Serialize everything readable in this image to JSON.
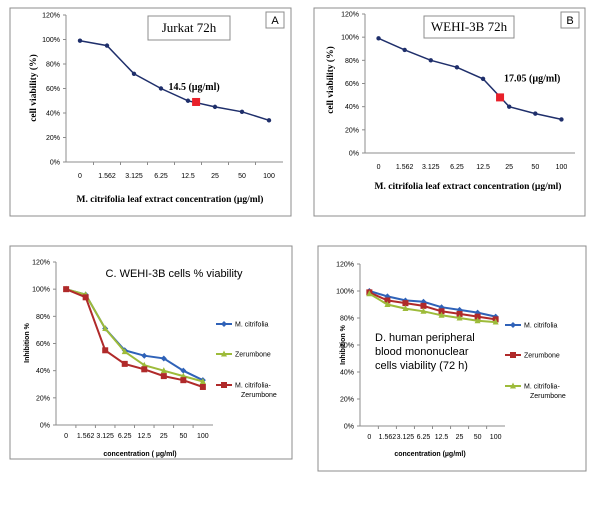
{
  "chart_data": [
    {
      "type": "line",
      "panel_letter": "A",
      "title": "Jurkat 72h",
      "xlabel": "M. citrifolia leaf extract concentration  (µg/ml)",
      "ylabel": "cell viability (%)",
      "categories": [
        "0",
        "1.562",
        "3.125",
        "6.25",
        "12.5",
        "25",
        "50",
        "100"
      ],
      "yticks": [
        "0%",
        "20%",
        "40%",
        "60%",
        "80%",
        "100%",
        "120%"
      ],
      "ylim": [
        0,
        120
      ],
      "series": [
        {
          "values": [
            99,
            95,
            72,
            60,
            50,
            45,
            41,
            34
          ],
          "color": "#1f2f6b"
        }
      ],
      "highlight": {
        "label": "14.5 (µg/ml)",
        "after_index": 4,
        "x_fraction": 0.3,
        "y": 49,
        "color": "#e8202a"
      },
      "grid": false
    },
    {
      "type": "line",
      "panel_letter": "B",
      "title": "WEHI-3B 72h",
      "xlabel": "M. citrifolia leaf extract concentration  (µg/ml)",
      "ylabel": "cell viability (%)",
      "categories": [
        "0",
        "1.562",
        "3.125",
        "6.25",
        "12.5",
        "25",
        "50",
        "100"
      ],
      "yticks": [
        "0%",
        "20%",
        "40%",
        "60%",
        "80%",
        "100%",
        "120%"
      ],
      "ylim": [
        0,
        120
      ],
      "series": [
        {
          "values": [
            99,
            89,
            80,
            74,
            64,
            40,
            34,
            29
          ],
          "color": "#1f2f6b"
        }
      ],
      "highlight": {
        "label": "17.05 (µg/ml)",
        "after_index": 4,
        "x_fraction": 0.65,
        "y": 48,
        "color": "#e8202a"
      },
      "grid": false
    },
    {
      "type": "line",
      "title": "C. WEHI-3B cells % viability",
      "xlabel": "concentration ( µg/ml)",
      "ylabel": "Inhibition %",
      "categories": [
        "0",
        "1.562",
        "3.125",
        "6.25",
        "12.5",
        "25",
        "50",
        "100"
      ],
      "yticks": [
        "0%",
        "20%",
        "40%",
        "60%",
        "80%",
        "100%",
        "120%"
      ],
      "ylim": [
        0,
        120
      ],
      "series": [
        {
          "name": "M. citrifolia",
          "values": [
            100,
            96,
            71,
            55,
            51,
            49,
            40,
            33
          ],
          "color": "#2f62b8",
          "marker": "diamond"
        },
        {
          "name": "Zerumbone",
          "values": [
            100,
            96,
            71,
            54,
            44,
            40,
            36,
            32
          ],
          "color": "#9dbb3a",
          "marker": "triangle"
        },
        {
          "name": "M. citrifolia-Zerumbone",
          "values": [
            100,
            94,
            55,
            45,
            41,
            36,
            33,
            28
          ],
          "color": "#b02a2a",
          "marker": "square"
        }
      ],
      "legend": "right",
      "grid": false
    },
    {
      "type": "line",
      "title": "D. human peripheral blood mononuclear cells viability (72 h)",
      "title_lines": [
        "D. human peripheral",
        "blood mononuclear",
        "cells viability (72 h)"
      ],
      "xlabel": "concentration (µg/ml)",
      "ylabel": "Inhibition %",
      "categories": [
        "0",
        "1.562",
        "3.125",
        "6.25",
        "12.5",
        "25",
        "50",
        "100"
      ],
      "yticks": [
        "0%",
        "20%",
        "40%",
        "60%",
        "80%",
        "100%",
        "120%"
      ],
      "ylim": [
        0,
        120
      ],
      "series": [
        {
          "name": "M. citrifolia",
          "values": [
            100,
            96,
            93,
            92,
            88,
            86,
            84,
            81
          ],
          "color": "#2f62b8",
          "marker": "diamond"
        },
        {
          "name": "Zerumbone",
          "values": [
            99,
            93,
            91,
            89,
            85,
            83,
            81,
            79
          ],
          "color": "#b02a2a",
          "marker": "square"
        },
        {
          "name": "M. citrifolia-Zerumbone",
          "values": [
            98,
            90,
            87,
            85,
            82,
            80,
            78,
            77
          ],
          "color": "#9dbb3a",
          "marker": "triangle"
        }
      ],
      "legend": "right",
      "grid": false
    }
  ]
}
